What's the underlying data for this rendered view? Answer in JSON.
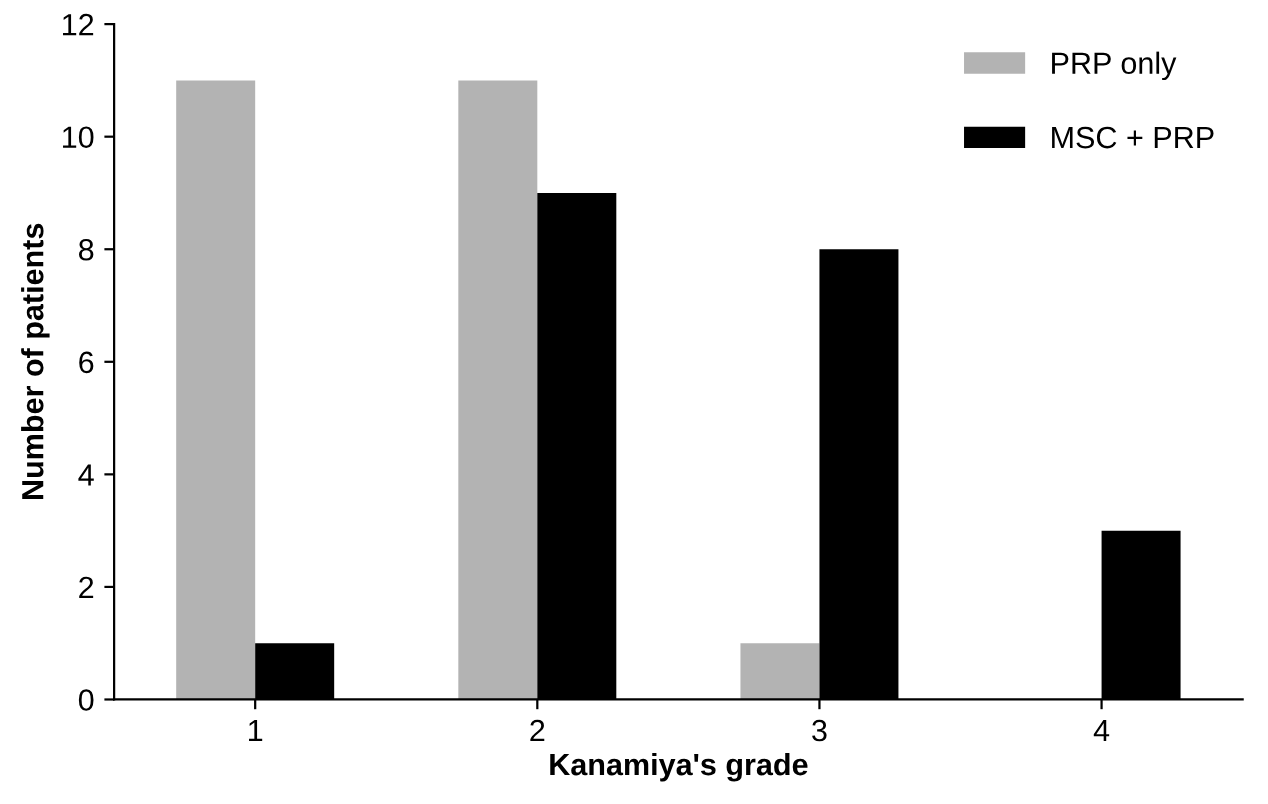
{
  "chart_data": {
    "type": "bar",
    "xlabel": "Kanamiya's grade",
    "ylabel": "Number of patients",
    "categories": [
      "1",
      "2",
      "3",
      "4"
    ],
    "series": [
      {
        "name": "PRP only",
        "color": "#b3b3b3",
        "values": [
          11,
          11,
          1,
          0
        ]
      },
      {
        "name": "MSC + PRP",
        "color": "#000000",
        "values": [
          1,
          9,
          8,
          3
        ]
      }
    ],
    "ylim": [
      0,
      12
    ],
    "yticks": [
      0,
      2,
      4,
      6,
      8,
      10,
      12
    ],
    "grid": false,
    "legend": "top right"
  }
}
